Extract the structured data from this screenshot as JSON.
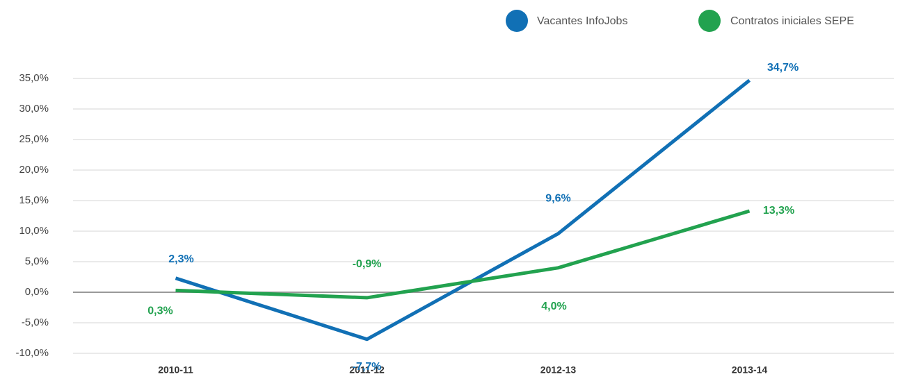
{
  "chart_data": {
    "type": "line",
    "categories": [
      "2010-11",
      "2011-12",
      "2012-13",
      "2013-14"
    ],
    "series": [
      {
        "name": "Vacantes InfoJobs",
        "color": "#1170b5",
        "values": [
          2.3,
          -7.7,
          9.6,
          34.7
        ],
        "value_labels": [
          "2,3%",
          "-7,7%",
          "9,6%",
          "34,7%"
        ]
      },
      {
        "name": "Contratos iniciales SEPE",
        "color": "#22a24f",
        "values": [
          0.3,
          -0.9,
          4.0,
          13.3
        ],
        "value_labels": [
          "0,3%",
          "-0,9%",
          "4,0%",
          "13,3%"
        ]
      }
    ],
    "ylim": [
      -10,
      35
    ],
    "yticks": [
      {
        "value": -10,
        "label": "-10,0%"
      },
      {
        "value": -5,
        "label": "-5,0%"
      },
      {
        "value": 0,
        "label": "0,0%"
      },
      {
        "value": 5,
        "label": "5,0%"
      },
      {
        "value": 10,
        "label": "10,0%"
      },
      {
        "value": 15,
        "label": "15,0%"
      },
      {
        "value": 20,
        "label": "20,0%"
      },
      {
        "value": 25,
        "label": "25,0%"
      },
      {
        "value": 30,
        "label": "30,0%"
      },
      {
        "value": 35,
        "label": "35,0%"
      }
    ],
    "grid": true,
    "legend": "top-right"
  }
}
